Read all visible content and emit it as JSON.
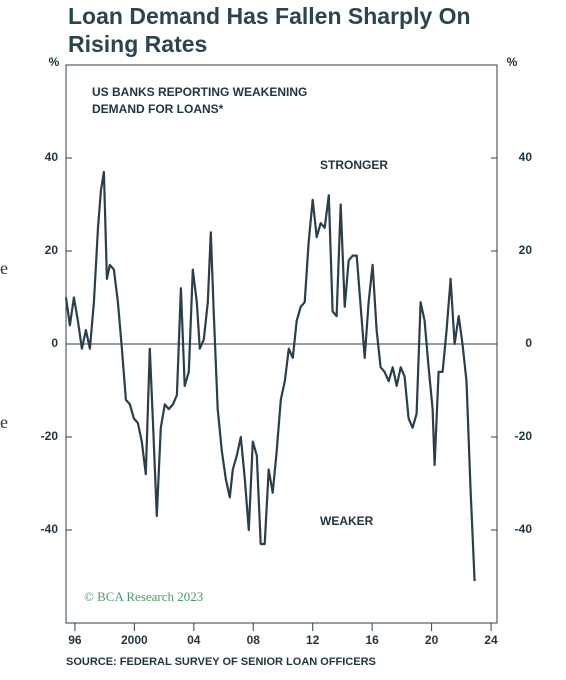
{
  "chart_data": {
    "type": "line",
    "title": "Loan Demand Has Fallen Sharply On Rising Rates",
    "annotation": "US BANKS REPORTING WEAKENING DEMAND FOR LOANS*",
    "label_top": "STRONGER",
    "label_bottom": "WEAKER",
    "watermark": "© BCA Research 2023",
    "source": "SOURCE: FEDERAL SURVEY OF SENIOR LOAN OFFICERS",
    "y_label": "%",
    "y2_label": "%",
    "margin_fragments": [
      "e",
      "e"
    ],
    "x": [
      1995.4,
      1995.66,
      1995.93,
      1996.2,
      1996.47,
      1996.74,
      1997.01,
      1997.28,
      1997.55,
      1997.75,
      1997.95,
      1998.15,
      1998.35,
      1998.62,
      1998.89,
      1999.16,
      1999.43,
      1999.7,
      1999.97,
      2000.24,
      2000.5,
      2000.77,
      2001.04,
      2001.24,
      2001.51,
      2001.78,
      2002.05,
      2002.32,
      2002.59,
      2002.86,
      2003.13,
      2003.39,
      2003.66,
      2003.93,
      2004.2,
      2004.4,
      2004.67,
      2004.94,
      2005.14,
      2005.34,
      2005.61,
      2005.88,
      2006.15,
      2006.42,
      2006.62,
      2006.89,
      2007.16,
      2007.43,
      2007.7,
      2007.97,
      2008.24,
      2008.5,
      2008.77,
      2009.04,
      2009.31,
      2009.58,
      2009.85,
      2010.12,
      2010.39,
      2010.66,
      2010.92,
      2011.19,
      2011.46,
      2011.73,
      2012.0,
      2012.27,
      2012.54,
      2012.81,
      2013.08,
      2013.34,
      2013.61,
      2013.88,
      2014.15,
      2014.42,
      2014.69,
      2014.96,
      2015.23,
      2015.5,
      2015.76,
      2016.03,
      2016.3,
      2016.57,
      2016.84,
      2017.11,
      2017.38,
      2017.65,
      2017.92,
      2018.18,
      2018.45,
      2018.72,
      2018.99,
      2019.26,
      2019.53,
      2019.8,
      2020.07,
      2020.2,
      2020.47,
      2020.74,
      2021.01,
      2021.28,
      2021.55,
      2021.82,
      2022.08,
      2022.35,
      2022.62,
      2022.89
    ],
    "series": [
      {
        "name": "US banks reporting weakening demand for loans",
        "color": "#2a3f4a",
        "values": [
          10,
          4,
          10,
          5,
          -1,
          3,
          -1,
          9,
          25,
          33,
          37,
          14,
          17,
          16,
          9,
          -1,
          -12,
          -13,
          -16,
          -17,
          -21,
          -28,
          -1,
          -16,
          -37,
          -18,
          -13,
          -14,
          -13,
          -11,
          12,
          -9,
          -6,
          16,
          9,
          -1,
          1,
          9,
          24,
          7,
          -14,
          -23,
          -29,
          -33,
          -27,
          -24,
          -20,
          -29,
          -40,
          -21,
          -24,
          -43,
          -43,
          -27,
          -32,
          -23,
          -12,
          -8,
          -1,
          -3,
          5,
          8,
          9,
          22,
          31,
          23,
          26,
          25,
          32,
          7,
          6,
          30,
          8,
          18,
          19,
          19,
          8,
          -3,
          9,
          17,
          3,
          -5,
          -6,
          -8,
          -5,
          -9,
          -5,
          -7,
          -16,
          -18,
          -15,
          9,
          5,
          -5,
          -14,
          -26,
          -6,
          -6,
          3,
          14,
          0,
          6,
          0,
          -8,
          -31,
          -51
        ]
      }
    ],
    "xlim": [
      1995.4,
      2024.4
    ],
    "xticks": [
      {
        "value": 1996,
        "label": "96"
      },
      2000,
      {
        "value": 2004,
        "label": "04"
      },
      {
        "value": 2008,
        "label": "08"
      },
      {
        "value": 2012,
        "label": "12"
      },
      {
        "value": 2016,
        "label": "16"
      },
      {
        "value": 2020,
        "label": "20"
      },
      {
        "value": 2024,
        "label": "24"
      }
    ],
    "ylim": [
      -60,
      60
    ],
    "yticks": [
      40,
      20,
      0,
      -20,
      -40
    ],
    "y2lim": [
      -60,
      60
    ],
    "y2ticks": [
      40,
      20,
      0,
      -20,
      -40
    ],
    "hline": 0,
    "grid": false
  }
}
